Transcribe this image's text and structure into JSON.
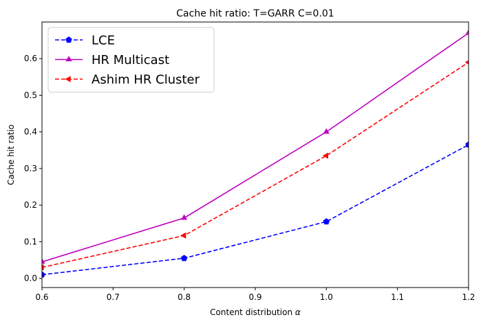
{
  "chart_data": {
    "type": "line",
    "title": "Cache hit ratio: T=GARR C=0.01",
    "xlabel": "Content distribution",
    "xlabel_symbol": "α",
    "ylabel": "Cache hit ratio",
    "xlim": [
      0.6,
      1.2
    ],
    "ylim": [
      -0.025,
      0.7
    ],
    "x_ticks": [
      "0.6",
      "0.7",
      "0.8",
      "0.9",
      "1.0",
      "1.1",
      "1.2"
    ],
    "y_ticks": [
      "0.0",
      "0.1",
      "0.2",
      "0.3",
      "0.4",
      "0.5",
      "0.6"
    ],
    "grid": false,
    "legend_position": "top-left",
    "x": [
      0.6,
      0.8,
      1.0,
      1.2
    ],
    "series": [
      {
        "name": "LCE",
        "values": [
          0.01,
          0.055,
          0.155,
          0.365
        ],
        "color": "#0000ff",
        "line": "dashed",
        "marker": "pentagon"
      },
      {
        "name": "HR Multicast",
        "values": [
          0.045,
          0.165,
          0.4,
          0.67
        ],
        "color": "#bf00bf",
        "line": "solid",
        "marker": "triangle-up"
      },
      {
        "name": "Ashim HR Cluster",
        "values": [
          0.03,
          0.117,
          0.335,
          0.59
        ],
        "color": "#ff0000",
        "line": "dashed",
        "marker": "triangle-left"
      }
    ]
  }
}
